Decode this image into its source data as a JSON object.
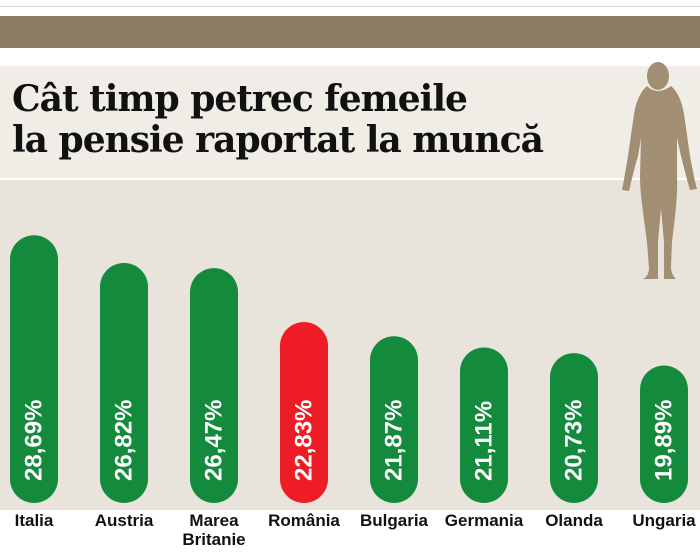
{
  "title": {
    "line1": "Cât timp petrec femeile",
    "line2": "la pensie  raportat la muncă"
  },
  "colors": {
    "bar": "#138a3c",
    "highlight": "#ee1c24",
    "band": "#8b7b63",
    "panel": "#e8e4dc",
    "silhouette": "#a28e72"
  },
  "icons": {
    "silhouette": "woman-silhouette-icon"
  },
  "chart_data": {
    "type": "bar",
    "orientation": "vertical",
    "categories": [
      "Italia",
      "Austria",
      "Marea Britanie",
      "România",
      "Bulgaria",
      "Germania",
      "Olanda",
      "Ungaria"
    ],
    "category_labels": [
      [
        "Italia"
      ],
      [
        "Austria"
      ],
      [
        "Marea",
        "Britanie"
      ],
      [
        "România"
      ],
      [
        "Bulgaria"
      ],
      [
        "Germania"
      ],
      [
        "Olanda"
      ],
      [
        "Ungaria"
      ]
    ],
    "values": [
      28.69,
      26.82,
      26.47,
      22.83,
      21.87,
      21.11,
      20.73,
      19.89
    ],
    "value_labels": [
      "28,69%",
      "26,82%",
      "26,47%",
      "22,83%",
      "21,87%",
      "21,11%",
      "20,73%",
      "19,89%"
    ],
    "highlight": "România",
    "unit": "%",
    "title": "Cât timp petrec femeile la pensie  raportat la muncă",
    "xlabel": "",
    "ylabel": "",
    "grid": false,
    "legend": "none"
  }
}
